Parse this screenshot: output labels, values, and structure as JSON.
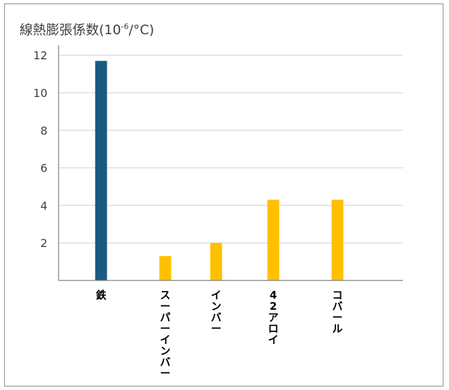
{
  "chart_data": {
    "type": "bar",
    "title_main": "線熱膨張係数(10",
    "title_exp": "-6",
    "title_unit": "/°C)",
    "categories": [
      "鉄",
      "スーパーインバー",
      "インバー",
      "42アロイ",
      "コバール"
    ],
    "category_lines": [
      [
        "鉄"
      ],
      [
        "ス",
        "ー",
        "パ",
        "ー",
        "イ",
        "ン",
        "バ",
        "ー"
      ],
      [
        "イ",
        "ン",
        "バ",
        "ー"
      ],
      [
        "4",
        "2",
        "ア",
        "ロ",
        "イ"
      ],
      [
        "コ",
        "バ",
        "ー",
        "ル"
      ]
    ],
    "values": [
      11.7,
      1.3,
      2.0,
      4.3,
      4.3
    ],
    "ylim": [
      0,
      12
    ],
    "yticks": [
      2,
      4,
      6,
      8,
      10,
      12
    ],
    "grid": true,
    "colors": {
      "highlight": "#1a5a80",
      "bar": "#ffc000",
      "grid": "#d0d0d0",
      "axis": "#808080"
    },
    "bar_colors": [
      "#1a5a80",
      "#ffc000",
      "#ffc000",
      "#ffc000",
      "#ffc000"
    ]
  }
}
